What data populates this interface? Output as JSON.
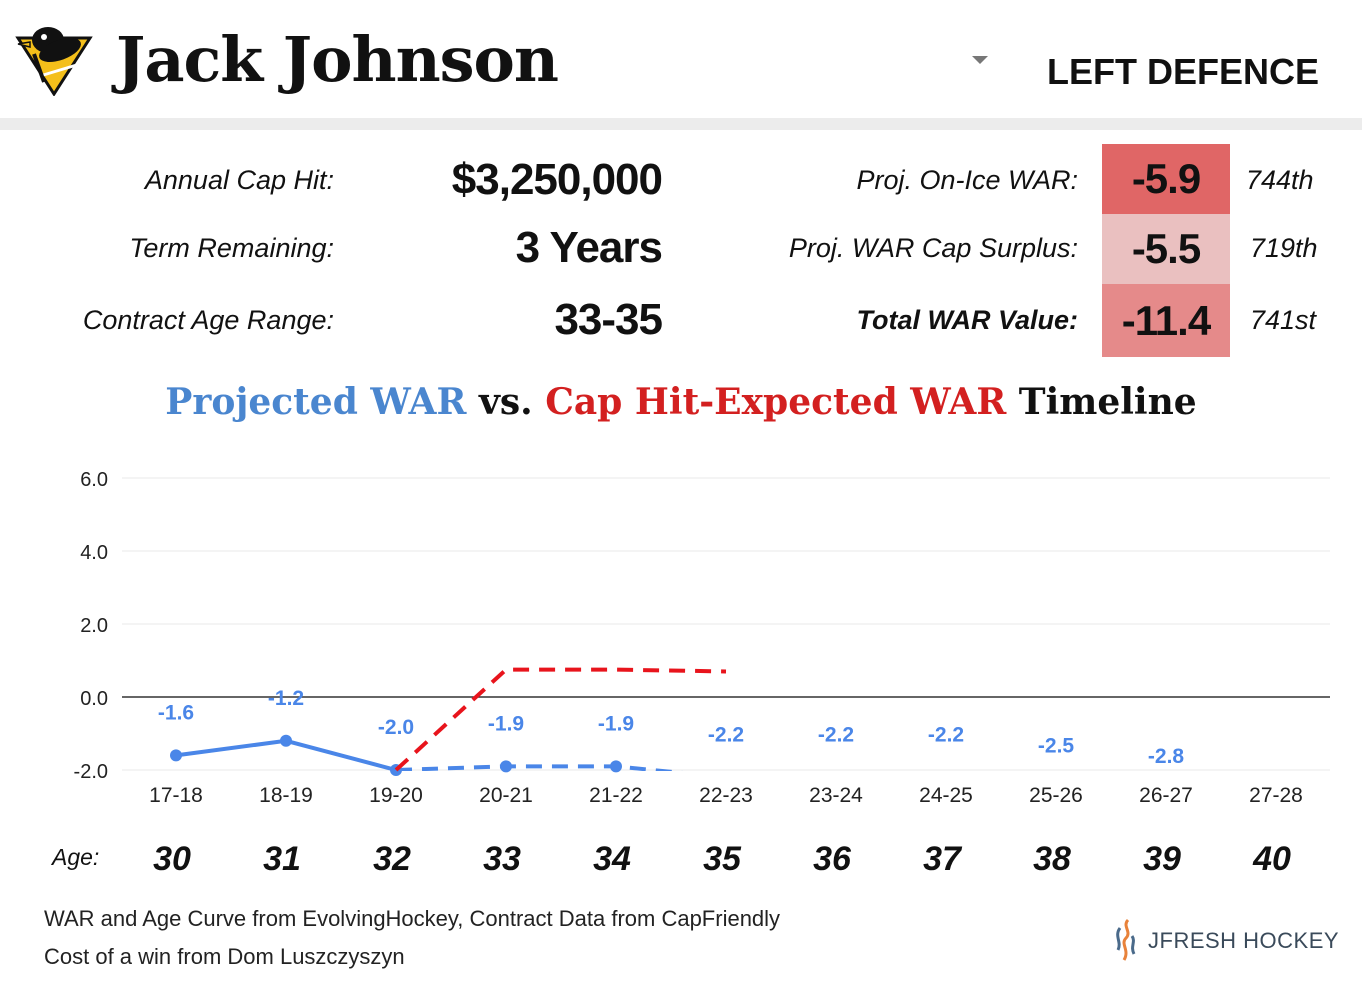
{
  "header": {
    "player_name": "Jack Johnson",
    "position": "LEFT DEFENCE",
    "team_logo": "penguins-logo-icon"
  },
  "contract": {
    "cap_hit_label": "Annual Cap Hit:",
    "cap_hit_value": "$3,250,000",
    "term_label": "Term Remaining:",
    "term_value": "3 Years",
    "age_range_label": "Contract Age Range:",
    "age_range_value": "33-35"
  },
  "war_stats": [
    {
      "label": "Proj. On-Ice WAR:",
      "value": "-5.9",
      "rank": "744th",
      "color": "#e06666",
      "bold_label": false
    },
    {
      "label": "Proj. WAR Cap Surplus:",
      "value": "-5.5",
      "rank": "719th",
      "color": "#eac0c0",
      "bold_label": false
    },
    {
      "label": "Total WAR Value:",
      "value": "-11.4",
      "rank": "741st",
      "color": "#e58a8a",
      "bold_label": true
    }
  ],
  "chart_title": {
    "part1": "Projected WAR",
    "part2": " vs. ",
    "part3": "Cap Hit-Expected WAR",
    "part4": " Timeline"
  },
  "chart_data": {
    "type": "line",
    "title": "Projected WAR vs. Cap Hit-Expected WAR Timeline",
    "categories": [
      "17-18",
      "18-19",
      "19-20",
      "20-21",
      "21-22",
      "22-23",
      "23-24",
      "24-25",
      "25-26",
      "26-27",
      "27-28"
    ],
    "ages": [
      "30",
      "31",
      "32",
      "33",
      "34",
      "35",
      "36",
      "37",
      "38",
      "39",
      "40"
    ],
    "age_label": "Age:",
    "y_ticks": [
      "6.0",
      "4.0",
      "2.0",
      "0.0",
      "-2.0"
    ],
    "ylim": [
      -2.0,
      6.0
    ],
    "grid": true,
    "series": [
      {
        "name": "Projected WAR",
        "color": "#4a86e8",
        "values": [
          -1.6,
          -1.2,
          -2.0,
          -1.9,
          -1.9,
          -2.2,
          -2.2,
          -2.2,
          -2.5,
          -2.8,
          null
        ],
        "labels": [
          "-1.6",
          "-1.2",
          "-2.0",
          "-1.9",
          "-1.9",
          "-2.2",
          "-2.2",
          "-2.2",
          "-2.5",
          "-2.8",
          ""
        ]
      },
      {
        "name": "Cap Hit-Expected WAR",
        "color": "#e8141c",
        "values": [
          null,
          null,
          -2.0,
          0.75,
          0.75,
          0.7,
          null,
          null,
          null,
          null,
          null
        ]
      }
    ]
  },
  "footer": {
    "line1": "WAR and Age Curve from EvolvingHockey, Contract Data from CapFriendly",
    "line2": "Cost of a win from Dom Luszczyszyn",
    "brand": "JFRESH HOCKEY"
  }
}
